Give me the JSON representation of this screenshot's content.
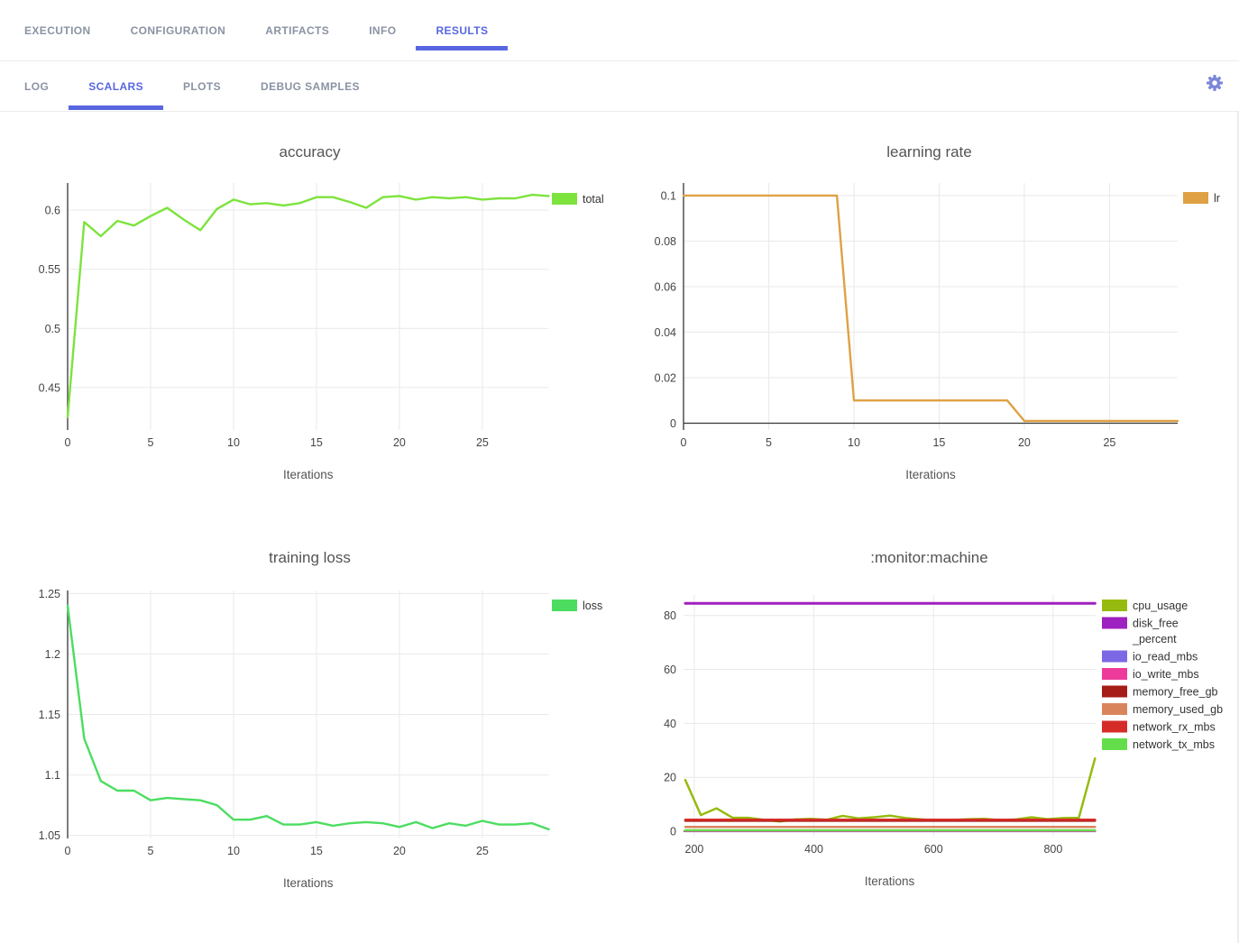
{
  "header": {
    "primary_tabs": [
      {
        "label": "EXECUTION",
        "active": false
      },
      {
        "label": "CONFIGURATION",
        "active": false
      },
      {
        "label": "ARTIFACTS",
        "active": false
      },
      {
        "label": "INFO",
        "active": false
      },
      {
        "label": "RESULTS",
        "active": true
      }
    ],
    "secondary_tabs": [
      {
        "label": "LOG",
        "active": false
      },
      {
        "label": "SCALARS",
        "active": true
      },
      {
        "label": "PLOTS",
        "active": false
      },
      {
        "label": "DEBUG SAMPLES",
        "active": false
      }
    ],
    "settings_icon": "gear-icon"
  },
  "colors": {
    "accent": "#5867e1",
    "inactive_tab": "#8a93a3",
    "grid": "#e9e9e9",
    "zeroline": "#444444",
    "tick_text": "#444444",
    "title_text": "#545454",
    "axis_label_text": "#555555",
    "legend_text": "#333333",
    "gear": "#7b87d9"
  },
  "chart_data": [
    {
      "id": "accuracy",
      "type": "line",
      "title": "accuracy",
      "xlabel": "Iterations",
      "xlim": [
        0,
        29
      ],
      "ylim": [
        0.414,
        0.623
      ],
      "xticks": [
        0,
        5,
        10,
        15,
        20,
        25
      ],
      "xtick_labels": [
        "0",
        "5",
        "10",
        "15",
        "20",
        "25"
      ],
      "yticks": [
        0.45,
        0.5,
        0.55,
        0.6
      ],
      "ytick_labels": [
        "0.45",
        "0.5",
        "0.55",
        "0.6"
      ],
      "zeroline_x": true,
      "zeroline_y": false,
      "grid": true,
      "legend_position": "right",
      "x": [
        0,
        1,
        2,
        3,
        4,
        5,
        6,
        7,
        8,
        9,
        10,
        11,
        12,
        13,
        14,
        15,
        16,
        17,
        18,
        19,
        20,
        21,
        22,
        23,
        24,
        25,
        26,
        27,
        28,
        29
      ],
      "series": [
        {
          "name": "total",
          "color": "#7de33d",
          "lw": 2.4,
          "values": [
            0.425,
            0.59,
            0.578,
            0.591,
            0.587,
            0.595,
            0.602,
            0.592,
            0.583,
            0.601,
            0.609,
            0.605,
            0.606,
            0.604,
            0.606,
            0.611,
            0.611,
            0.607,
            0.602,
            0.611,
            0.612,
            0.609,
            0.611,
            0.61,
            0.611,
            0.609,
            0.61,
            0.61,
            0.613,
            0.612
          ]
        }
      ]
    },
    {
      "id": "learning-rate",
      "type": "line",
      "title": "learning rate",
      "xlabel": "Iterations",
      "xlim": [
        0,
        29
      ],
      "ylim": [
        -0.003,
        0.1055
      ],
      "xticks": [
        0,
        5,
        10,
        15,
        20,
        25
      ],
      "xtick_labels": [
        "0",
        "5",
        "10",
        "15",
        "20",
        "25"
      ],
      "yticks": [
        0,
        0.02,
        0.04,
        0.06,
        0.08,
        0.1
      ],
      "ytick_labels": [
        "0",
        "0.02",
        "0.04",
        "0.06",
        "0.08",
        "0.1"
      ],
      "zeroline_x": true,
      "zeroline_y": true,
      "grid": true,
      "legend_position": "right",
      "x": [
        0,
        1,
        2,
        3,
        4,
        5,
        6,
        7,
        8,
        9,
        10,
        11,
        12,
        13,
        14,
        15,
        16,
        17,
        18,
        19,
        20,
        21,
        22,
        23,
        24,
        25,
        26,
        27,
        28,
        29
      ],
      "series": [
        {
          "name": "lr",
          "color": "#dfa144",
          "lw": 2.4,
          "values": [
            0.1,
            0.1,
            0.1,
            0.1,
            0.1,
            0.1,
            0.1,
            0.1,
            0.1,
            0.1,
            0.01,
            0.01,
            0.01,
            0.01,
            0.01,
            0.01,
            0.01,
            0.01,
            0.01,
            0.01,
            0.001,
            0.001,
            0.001,
            0.001,
            0.001,
            0.001,
            0.001,
            0.001,
            0.001,
            0.001
          ]
        }
      ]
    },
    {
      "id": "training-loss",
      "type": "line",
      "title": "training loss",
      "xlabel": "Iterations",
      "xlim": [
        0,
        29
      ],
      "ylim": [
        1.0475,
        1.2525
      ],
      "xticks": [
        0,
        5,
        10,
        15,
        20,
        25
      ],
      "xtick_labels": [
        "0",
        "5",
        "10",
        "15",
        "20",
        "25"
      ],
      "yticks": [
        1.05,
        1.1,
        1.15,
        1.2,
        1.25
      ],
      "ytick_labels": [
        "1.05",
        "1.1",
        "1.15",
        "1.2",
        "1.25"
      ],
      "zeroline_x": true,
      "zeroline_y": false,
      "grid": true,
      "legend_position": "right",
      "x": [
        0,
        1,
        2,
        3,
        4,
        5,
        6,
        7,
        8,
        9,
        10,
        11,
        12,
        13,
        14,
        15,
        16,
        17,
        18,
        19,
        20,
        21,
        22,
        23,
        24,
        25,
        26,
        27,
        28,
        29
      ],
      "series": [
        {
          "name": "loss",
          "color": "#4cdd60",
          "lw": 2.4,
          "values": [
            1.24,
            1.13,
            1.095,
            1.087,
            1.087,
            1.079,
            1.081,
            1.08,
            1.079,
            1.075,
            1.063,
            1.063,
            1.066,
            1.059,
            1.059,
            1.061,
            1.058,
            1.06,
            1.061,
            1.06,
            1.057,
            1.061,
            1.056,
            1.06,
            1.058,
            1.062,
            1.059,
            1.059,
            1.06,
            1.055
          ]
        }
      ]
    },
    {
      "id": "monitor-machine",
      "type": "line",
      "title": ":monitor:machine",
      "xlabel": "Iterations",
      "xlim": [
        182,
        871
      ],
      "ylim": [
        -2,
        87.6
      ],
      "xticks": [
        200,
        400,
        600,
        800
      ],
      "xtick_labels": [
        "200",
        "400",
        "600",
        "800"
      ],
      "yticks": [
        0,
        20,
        40,
        60,
        80
      ],
      "ytick_labels": [
        "0",
        "20",
        "40",
        "60",
        "80"
      ],
      "zeroline_x": false,
      "zeroline_y": true,
      "grid": true,
      "legend_position": "right",
      "x": [
        185,
        211,
        237,
        264,
        290,
        316,
        343,
        369,
        395,
        422,
        448,
        474,
        501,
        527,
        553,
        580,
        606,
        632,
        659,
        685,
        711,
        738,
        764,
        790,
        817,
        843,
        870
      ],
      "series": [
        {
          "name": "cpu_usage",
          "color": "#97ba0f",
          "lw": 2.5,
          "values": [
            19,
            6,
            8.5,
            5,
            5,
            4.3,
            3.6,
            4.4,
            4.6,
            4.3,
            5.7,
            4.8,
            5.2,
            5.8,
            4.9,
            4.4,
            4,
            4.2,
            4.5,
            4.6,
            4.1,
            4.4,
            5.2,
            4.5,
            4.9,
            5,
            27
          ]
        },
        {
          "name": "disk_free\n_percent",
          "color": "#9e20c0",
          "lw": 3,
          "values": [
            84.5,
            84.5,
            84.5,
            84.5,
            84.5,
            84.5,
            84.5,
            84.5,
            84.5,
            84.5,
            84.5,
            84.5,
            84.5,
            84.5,
            84.5,
            84.5,
            84.5,
            84.5,
            84.5,
            84.5,
            84.5,
            84.5,
            84.5,
            84.5,
            84.5,
            84.5,
            84.5
          ]
        },
        {
          "name": "io_read_mbs",
          "color": "#7c68e4",
          "lw": 2.5,
          "values": [
            0.05,
            0.05,
            0.05,
            0.05,
            0.05,
            0.05,
            0.05,
            0.05,
            0.05,
            0.05,
            0.05,
            0.05,
            0.05,
            0.05,
            0.05,
            0.05,
            0.05,
            0.05,
            0.05,
            0.05,
            0.05,
            0.05,
            0.05,
            0.05,
            0.05,
            0.05,
            0.05
          ]
        },
        {
          "name": "io_write_mbs",
          "color": "#ee3b9b",
          "lw": 2.5,
          "values": [
            0.15,
            0.15,
            0.15,
            0.15,
            0.15,
            0.15,
            0.15,
            0.15,
            0.15,
            0.15,
            0.15,
            0.15,
            0.15,
            0.15,
            0.15,
            0.15,
            0.15,
            0.15,
            0.15,
            0.15,
            0.15,
            0.15,
            0.15,
            0.15,
            0.15,
            0.15,
            0.15
          ]
        },
        {
          "name": "memory_free_gb",
          "color": "#a51d16",
          "lw": 2.5,
          "values": [
            3.9,
            3.9,
            3.9,
            3.9,
            3.9,
            3.9,
            3.9,
            3.9,
            3.9,
            3.9,
            3.9,
            3.9,
            3.9,
            3.9,
            3.9,
            3.9,
            3.9,
            3.9,
            3.9,
            3.9,
            3.9,
            3.9,
            3.9,
            3.9,
            3.9,
            3.9,
            3.9
          ]
        },
        {
          "name": "memory_used_gb",
          "color": "#d9855c",
          "lw": 2.5,
          "values": [
            1.6,
            1.6,
            1.6,
            1.6,
            1.6,
            1.6,
            1.6,
            1.6,
            1.6,
            1.6,
            1.6,
            1.6,
            1.6,
            1.6,
            1.6,
            1.6,
            1.6,
            1.6,
            1.6,
            1.6,
            1.6,
            1.6,
            1.6,
            1.6,
            1.6,
            1.6,
            1.6
          ]
        },
        {
          "name": "network_rx_mbs",
          "color": "#d62c28",
          "lw": 2.5,
          "values": [
            4.3,
            4.3,
            4.3,
            4.3,
            4.3,
            4.3,
            4.3,
            4.3,
            4.3,
            4.3,
            4.3,
            4.3,
            4.3,
            4.3,
            4.3,
            4.3,
            4.3,
            4.3,
            4.3,
            4.3,
            4.3,
            4.3,
            4.3,
            4.3,
            4.3,
            4.3,
            4.3
          ]
        },
        {
          "name": "network_tx_mbs",
          "color": "#63de4a",
          "lw": 2.5,
          "values": [
            0.35,
            0.35,
            0.35,
            0.35,
            0.35,
            0.35,
            0.35,
            0.35,
            0.35,
            0.35,
            0.35,
            0.35,
            0.35,
            0.35,
            0.35,
            0.35,
            0.35,
            0.35,
            0.35,
            0.35,
            0.35,
            0.35,
            0.35,
            0.35,
            0.35,
            0.35,
            0.35
          ]
        }
      ]
    }
  ]
}
